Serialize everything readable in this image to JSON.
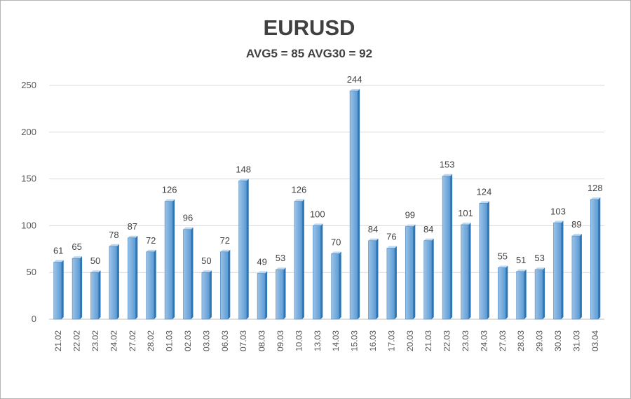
{
  "chart_data": {
    "type": "bar",
    "title": "EURUSD",
    "subtitle": "AVG5 = 85 AVG30 = 92",
    "xlabel": "",
    "ylabel": "",
    "ylim": [
      0,
      250
    ],
    "yticks": [
      0,
      50,
      100,
      150,
      200,
      250
    ],
    "grid": true,
    "legend": "none",
    "categories": [
      "21.02",
      "22.02",
      "23.02",
      "24.02",
      "27.02",
      "28.02",
      "01.03",
      "02.03",
      "03.03",
      "06.03",
      "07.03",
      "08.03",
      "09.03",
      "10.03",
      "13.03",
      "14.03",
      "15.03",
      "16.03",
      "17.03",
      "20.03",
      "21.03",
      "22.03",
      "23.03",
      "24.03",
      "27.03",
      "28.03",
      "29.03",
      "30.03",
      "31.03",
      "03.04"
    ],
    "values": [
      61,
      65,
      50,
      78,
      87,
      72,
      126,
      96,
      50,
      72,
      148,
      49,
      53,
      126,
      100,
      70,
      244,
      84,
      76,
      99,
      84,
      153,
      101,
      124,
      55,
      51,
      53,
      103,
      89,
      128
    ],
    "colors": {
      "bar_front_top": "#9dc3e6",
      "bar_front_bottom": "#5b9bd5",
      "bar_side": "#2e75b6",
      "bar_top": "#bdd7ee"
    }
  }
}
